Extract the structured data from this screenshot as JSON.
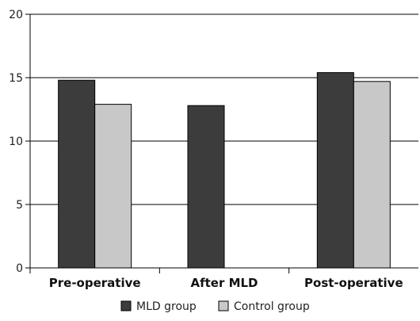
{
  "chart_data": {
    "type": "bar",
    "categories": [
      "Pre-operative",
      "After MLD",
      "Post-operative"
    ],
    "series": [
      {
        "name": "MLD group",
        "color": "#3c3c3c",
        "values": [
          14.8,
          12.8,
          15.4
        ]
      },
      {
        "name": "Control group",
        "color": "#c8c8c8",
        "values": [
          12.9,
          null,
          14.7
        ]
      }
    ],
    "title": "",
    "xlabel": "",
    "ylabel": "",
    "ylim": [
      0,
      20
    ],
    "yticks": [
      0,
      5,
      10,
      15,
      20
    ],
    "grid": "horizontal",
    "legend": "bottom-center"
  }
}
